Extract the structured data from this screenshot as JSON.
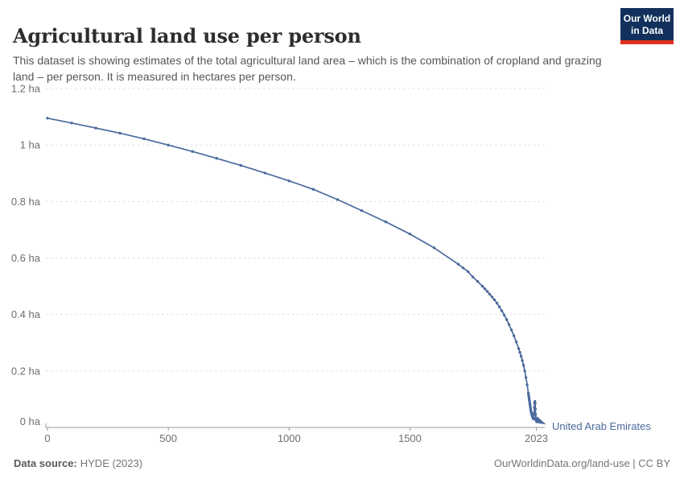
{
  "header": {
    "title": "Agricultural land use per person",
    "subtitle": "This dataset is showing estimates of the total agricultural land area – which is the combination of cropland and grazing land – per person. It is measured in hectares per person.",
    "logo": {
      "line1": "Our World",
      "line2": "in Data",
      "bg_color": "#12305b",
      "bar_color": "#e0301e"
    }
  },
  "chart_data": {
    "type": "line",
    "title": "Agricultural land use per person",
    "xlabel": "",
    "ylabel": "hectares per person",
    "xlim": [
      0,
      2023
    ],
    "ylim": [
      0,
      1.2
    ],
    "grid": "horizontal-dashed",
    "grid_color": "#dcdcdc",
    "axis_color": "#9a9a9a",
    "tick_label_color": "#6e6e6e",
    "x_ticks": [
      {
        "value": 0,
        "label": "0"
      },
      {
        "value": 500,
        "label": "500"
      },
      {
        "value": 1000,
        "label": "1000"
      },
      {
        "value": 1500,
        "label": "1500"
      },
      {
        "value": 2023,
        "label": "2023"
      }
    ],
    "y_ticks": [
      {
        "value": 0,
        "label": "0 ha"
      },
      {
        "value": 0.2,
        "label": "0.2 ha"
      },
      {
        "value": 0.4,
        "label": "0.4 ha"
      },
      {
        "value": 0.6,
        "label": "0.6 ha"
      },
      {
        "value": 0.8,
        "label": "0.8 ha"
      },
      {
        "value": 1,
        "label": "1 ha"
      },
      {
        "value": 1.2,
        "label": "1.2 ha"
      }
    ],
    "series": [
      {
        "name": "United Arab Emirates",
        "color": "#4c6a9c",
        "points": [
          [
            0,
            1.095
          ],
          [
            100,
            1.078
          ],
          [
            200,
            1.06
          ],
          [
            300,
            1.042
          ],
          [
            400,
            1.022
          ],
          [
            500,
            1.0
          ],
          [
            600,
            0.977
          ],
          [
            700,
            0.953
          ],
          [
            800,
            0.928
          ],
          [
            900,
            0.901
          ],
          [
            1000,
            0.873
          ],
          [
            1100,
            0.843
          ],
          [
            1200,
            0.807
          ],
          [
            1300,
            0.768
          ],
          [
            1400,
            0.728
          ],
          [
            1500,
            0.685
          ],
          [
            1600,
            0.636
          ],
          [
            1700,
            0.578
          ],
          [
            1720,
            0.565
          ],
          [
            1740,
            0.552
          ],
          [
            1760,
            0.533
          ],
          [
            1780,
            0.517
          ],
          [
            1800,
            0.5
          ],
          [
            1810,
            0.491
          ],
          [
            1820,
            0.482
          ],
          [
            1830,
            0.472
          ],
          [
            1840,
            0.462
          ],
          [
            1850,
            0.452
          ],
          [
            1860,
            0.44
          ],
          [
            1870,
            0.427
          ],
          [
            1880,
            0.413
          ],
          [
            1890,
            0.398
          ],
          [
            1900,
            0.382
          ],
          [
            1910,
            0.364
          ],
          [
            1920,
            0.345
          ],
          [
            1930,
            0.325
          ],
          [
            1940,
            0.303
          ],
          [
            1950,
            0.279
          ],
          [
            1955,
            0.266
          ],
          [
            1960,
            0.252
          ],
          [
            1965,
            0.237
          ],
          [
            1970,
            0.22
          ],
          [
            1975,
            0.2
          ],
          [
            1980,
            0.177
          ],
          [
            1985,
            0.151
          ],
          [
            1990,
            0.121
          ],
          [
            1991,
            0.115
          ],
          [
            1992,
            0.109
          ],
          [
            1993,
            0.103
          ],
          [
            1994,
            0.097
          ],
          [
            1995,
            0.091
          ],
          [
            1996,
            0.085
          ],
          [
            1997,
            0.079
          ],
          [
            1998,
            0.073
          ],
          [
            1999,
            0.068
          ],
          [
            2000,
            0.063
          ],
          [
            2001,
            0.058
          ],
          [
            2002,
            0.054
          ],
          [
            2003,
            0.05
          ],
          [
            2004,
            0.047
          ],
          [
            2005,
            0.044
          ],
          [
            2006,
            0.041
          ],
          [
            2007,
            0.038
          ],
          [
            2008,
            0.036
          ],
          [
            2009,
            0.034
          ],
          [
            2010,
            0.032
          ],
          [
            2011,
            0.031
          ],
          [
            2012,
            0.03
          ],
          [
            2013,
            0.033
          ],
          [
            2014,
            0.05
          ],
          [
            2015,
            0.071
          ],
          [
            2016,
            0.087
          ],
          [
            2017,
            0.092
          ],
          [
            2018,
            0.085
          ],
          [
            2019,
            0.066
          ],
          [
            2020,
            0.046
          ],
          [
            2021,
            0.033
          ],
          [
            2022,
            0.026
          ],
          [
            2023,
            0.022
          ]
        ]
      }
    ]
  },
  "footer": {
    "source_label": "Data source:",
    "source_value": "HYDE (2023)",
    "right_text": "OurWorldinData.org/land-use | CC BY"
  }
}
